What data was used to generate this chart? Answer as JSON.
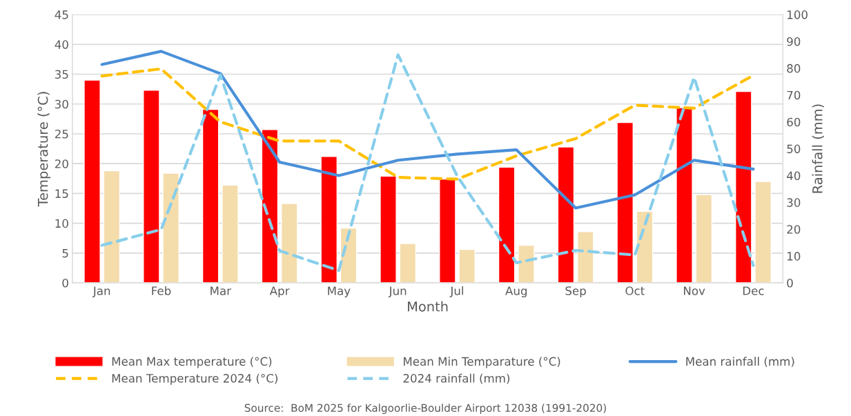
{
  "chart_data": {
    "type": "bar",
    "xlabel": "Month",
    "ylabel": "Temperature (°C)",
    "y2label": "Rainfall (mm)",
    "categories": [
      "Jan",
      "Feb",
      "Mar",
      "Apr",
      "May",
      "Jun",
      "Jul",
      "Aug",
      "Sep",
      "Oct",
      "Nov",
      "Dec"
    ],
    "series": [
      {
        "name": "Mean Max temperature (°C)",
        "color": "#ff0000",
        "values": [
          34.0,
          32.3,
          29.1,
          25.7,
          21.2,
          17.9,
          17.4,
          19.4,
          22.8,
          26.9,
          29.4,
          32.1
        ]
      },
      {
        "name": "Mean Min Temparature (°C)",
        "color": "#f4dcab",
        "values": [
          18.8,
          18.4,
          16.4,
          13.3,
          9.2,
          6.6,
          5.6,
          6.3,
          8.6,
          12.0,
          14.8,
          17.0
        ]
      },
      {
        "name": "Mean rainfall (mm)",
        "type": "line",
        "axis": "y2",
        "line_style": "solid",
        "color": "#4a90d9",
        "values": [
          81.4,
          86.3,
          78.0,
          45.0,
          40.0,
          45.7,
          48.0,
          49.6,
          27.9,
          32.8,
          45.7,
          42.4
        ]
      },
      {
        "name": "Mean Temperature 2024 (°C)",
        "type": "line",
        "line_style": "dashed",
        "color": "#ffc000",
        "values": [
          34.7,
          35.9,
          27.0,
          23.8,
          23.8,
          17.7,
          17.4,
          21.3,
          24.2,
          29.8,
          29.3,
          34.8
        ]
      },
      {
        "name": "2024 rainfall (mm)",
        "type": "line",
        "axis": "y2",
        "line_style": "dashed",
        "color": "#87ceeb",
        "values": [
          14.0,
          19.9,
          77.5,
          12.0,
          4.6,
          85.0,
          39.8,
          7.5,
          12.1,
          10.4,
          76.6,
          6.5
        ]
      }
    ],
    "ylim": [
      0,
      45
    ],
    "yticks": [
      0,
      5,
      10,
      15,
      20,
      25,
      30,
      35,
      40,
      45
    ],
    "y2lim": [
      0,
      100
    ],
    "y2ticks": [
      0,
      10,
      20,
      30,
      40,
      50,
      60,
      70,
      80,
      90,
      100
    ],
    "grid": "y",
    "legend": "bottom",
    "annotations": [
      "Source:  BoM 2025 for Kalgoorlie-Boulder Airport 12038 (1991-2020)"
    ]
  }
}
